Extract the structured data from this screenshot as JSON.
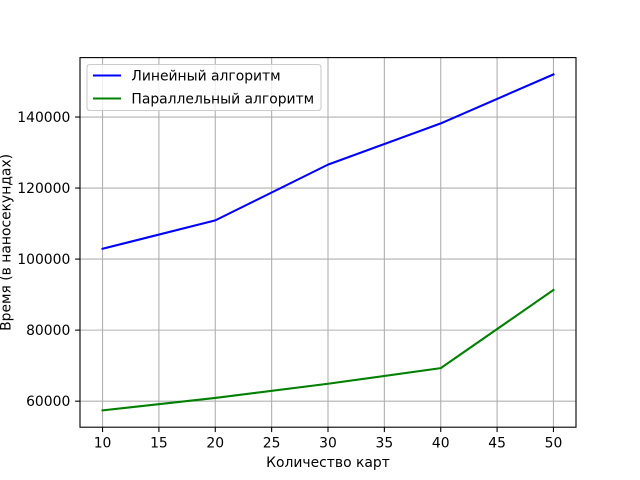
{
  "chart_data": {
    "type": "line",
    "xlabel": "Количество карт",
    "ylabel": "Время (в наносекундах)",
    "x": [
      10,
      20,
      30,
      40,
      50
    ],
    "series": [
      {
        "name": "Линейный алгоритм",
        "color": "#0000ff",
        "values": [
          102900,
          110900,
          126600,
          138200,
          152000
        ]
      },
      {
        "name": "Параллельный алгоритм",
        "color": "#008000",
        "values": [
          57400,
          60900,
          64900,
          69300,
          91300
        ]
      }
    ],
    "xlim": [
      8,
      52
    ],
    "ylim": [
      52670,
      156730
    ],
    "xticks": [
      10,
      15,
      20,
      25,
      30,
      35,
      40,
      45,
      50
    ],
    "yticks": [
      60000,
      80000,
      100000,
      120000,
      140000
    ],
    "grid": true,
    "legend_position": "upper-left"
  }
}
